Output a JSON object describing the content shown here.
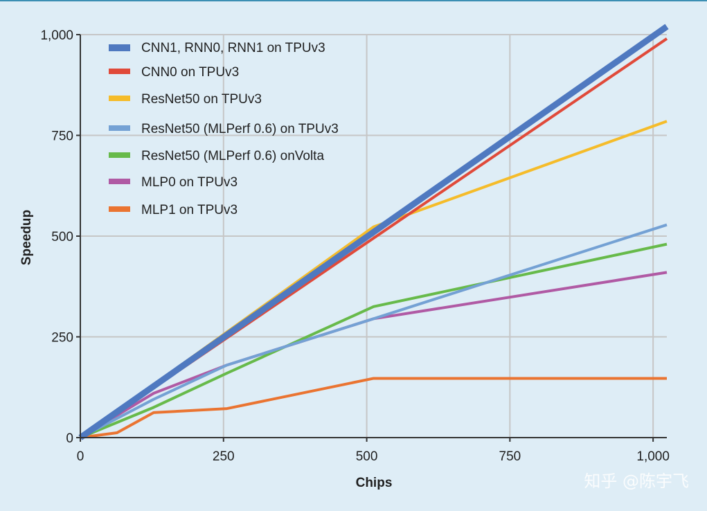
{
  "chart_data": {
    "type": "line",
    "title": "",
    "xlabel": "Chips",
    "ylabel": "Speedup",
    "xlim": [
      0,
      1024
    ],
    "ylim": [
      0,
      1000
    ],
    "xticks": [
      0,
      250,
      500,
      750,
      1000
    ],
    "xtick_labels": [
      "0",
      "250",
      "500",
      "750",
      "1,000"
    ],
    "yticks": [
      0,
      250,
      500,
      750,
      1000
    ],
    "ytick_labels": [
      "0",
      "250",
      "500",
      "750",
      "1,000"
    ],
    "grid": true,
    "legend_position": "top-left",
    "series": [
      {
        "name": "CNN1, RNN0, RNN1 on TPUv3",
        "color": "#4f79c0",
        "x": [
          0,
          1024
        ],
        "y": [
          0,
          1020
        ]
      },
      {
        "name": "CNN0 on TPUv3",
        "color": "#e04a3a",
        "x": [
          0,
          512,
          1024
        ],
        "y": [
          0,
          495,
          990
        ]
      },
      {
        "name": "ResNet50 on TPUv3",
        "color": "#f5bc2a",
        "x": [
          0,
          256,
          512,
          1024
        ],
        "y": [
          0,
          262,
          523,
          785
        ]
      },
      {
        "name": "ResNet50 (MLPerf 0.6) on TPUv3",
        "color": "#74a1d4",
        "x": [
          0,
          128,
          256,
          512,
          1024
        ],
        "y": [
          0,
          95,
          180,
          295,
          528
        ]
      },
      {
        "name": "ResNet50 (MLPerf 0.6) onVolta",
        "color": "#67ba4a",
        "x": [
          0,
          128,
          256,
          512,
          1024
        ],
        "y": [
          0,
          75,
          160,
          325,
          480
        ]
      },
      {
        "name": "MLP0 on TPUv3",
        "color": "#b05aa4",
        "x": [
          0,
          128,
          256,
          512,
          1024
        ],
        "y": [
          0,
          110,
          180,
          295,
          410
        ]
      },
      {
        "name": "MLP1 on TPUv3",
        "color": "#ea7431",
        "x": [
          0,
          64,
          128,
          256,
          512,
          1024
        ],
        "y": [
          0,
          12,
          62,
          72,
          147,
          147
        ]
      }
    ]
  },
  "watermark": "知乎 @陈宇飞"
}
